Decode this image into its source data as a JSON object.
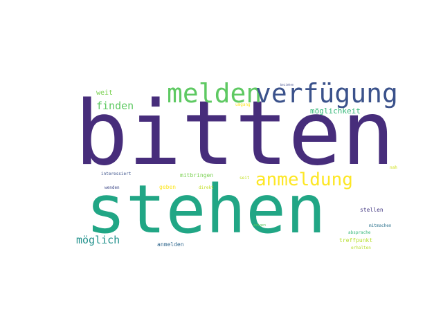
{
  "words": [
    {
      "id": "bitten",
      "text": "bitten",
      "color": "#472d7b"
    },
    {
      "id": "stehen",
      "text": "stehen",
      "color": "#21a685"
    },
    {
      "id": "melden",
      "text": "melden",
      "color": "#5ec962"
    },
    {
      "id": "verfuegung",
      "text": "verfügung",
      "color": "#3b528b"
    },
    {
      "id": "anmeldung",
      "text": "anmeldung",
      "color": "#fde725"
    },
    {
      "id": "finden",
      "text": "finden",
      "color": "#5ec962"
    },
    {
      "id": "moeglich",
      "text": "möglich",
      "color": "#21918c"
    },
    {
      "id": "moeglichkeit",
      "text": "möglichkeit",
      "color": "#35b779"
    },
    {
      "id": "weit",
      "text": "weit",
      "color": "#7ad151"
    },
    {
      "id": "mitbringen",
      "text": "mitbringen",
      "color": "#7ad151"
    },
    {
      "id": "geben",
      "text": "geben",
      "color": "#fde725"
    },
    {
      "id": "anmelden",
      "text": "anmelden",
      "color": "#31688e"
    },
    {
      "id": "traffpunkt",
      "text": "treffpunkt",
      "color": "#b5de2b"
    },
    {
      "id": "stellen",
      "text": "stellen",
      "color": "#443983"
    },
    {
      "id": "mitmachen",
      "text": "mitmachen",
      "color": "#2c728e"
    },
    {
      "id": "absprache",
      "text": "absprache",
      "color": "#35b779"
    },
    {
      "id": "erhalten",
      "text": "erhalten",
      "color": "#b5de2b"
    },
    {
      "id": "interessiert",
      "text": "interessiert",
      "color": "#3b528b"
    },
    {
      "id": "wenden",
      "text": "wenden",
      "color": "#3e4989"
    },
    {
      "id": "direkt",
      "text": "direkt",
      "color": "#c2df23"
    },
    {
      "id": "seit",
      "text": "seit",
      "color": "#c2df23"
    },
    {
      "id": "zeigen",
      "text": "zeigen",
      "color": "#5ec962"
    },
    {
      "id": "nah",
      "text": "nah",
      "color": "#d0e11c"
    },
    {
      "id": "umgang",
      "text": "umgang",
      "color": "#fde725"
    },
    {
      "id": "beziehen",
      "text": "beziehen",
      "color": "#3e4989"
    }
  ]
}
